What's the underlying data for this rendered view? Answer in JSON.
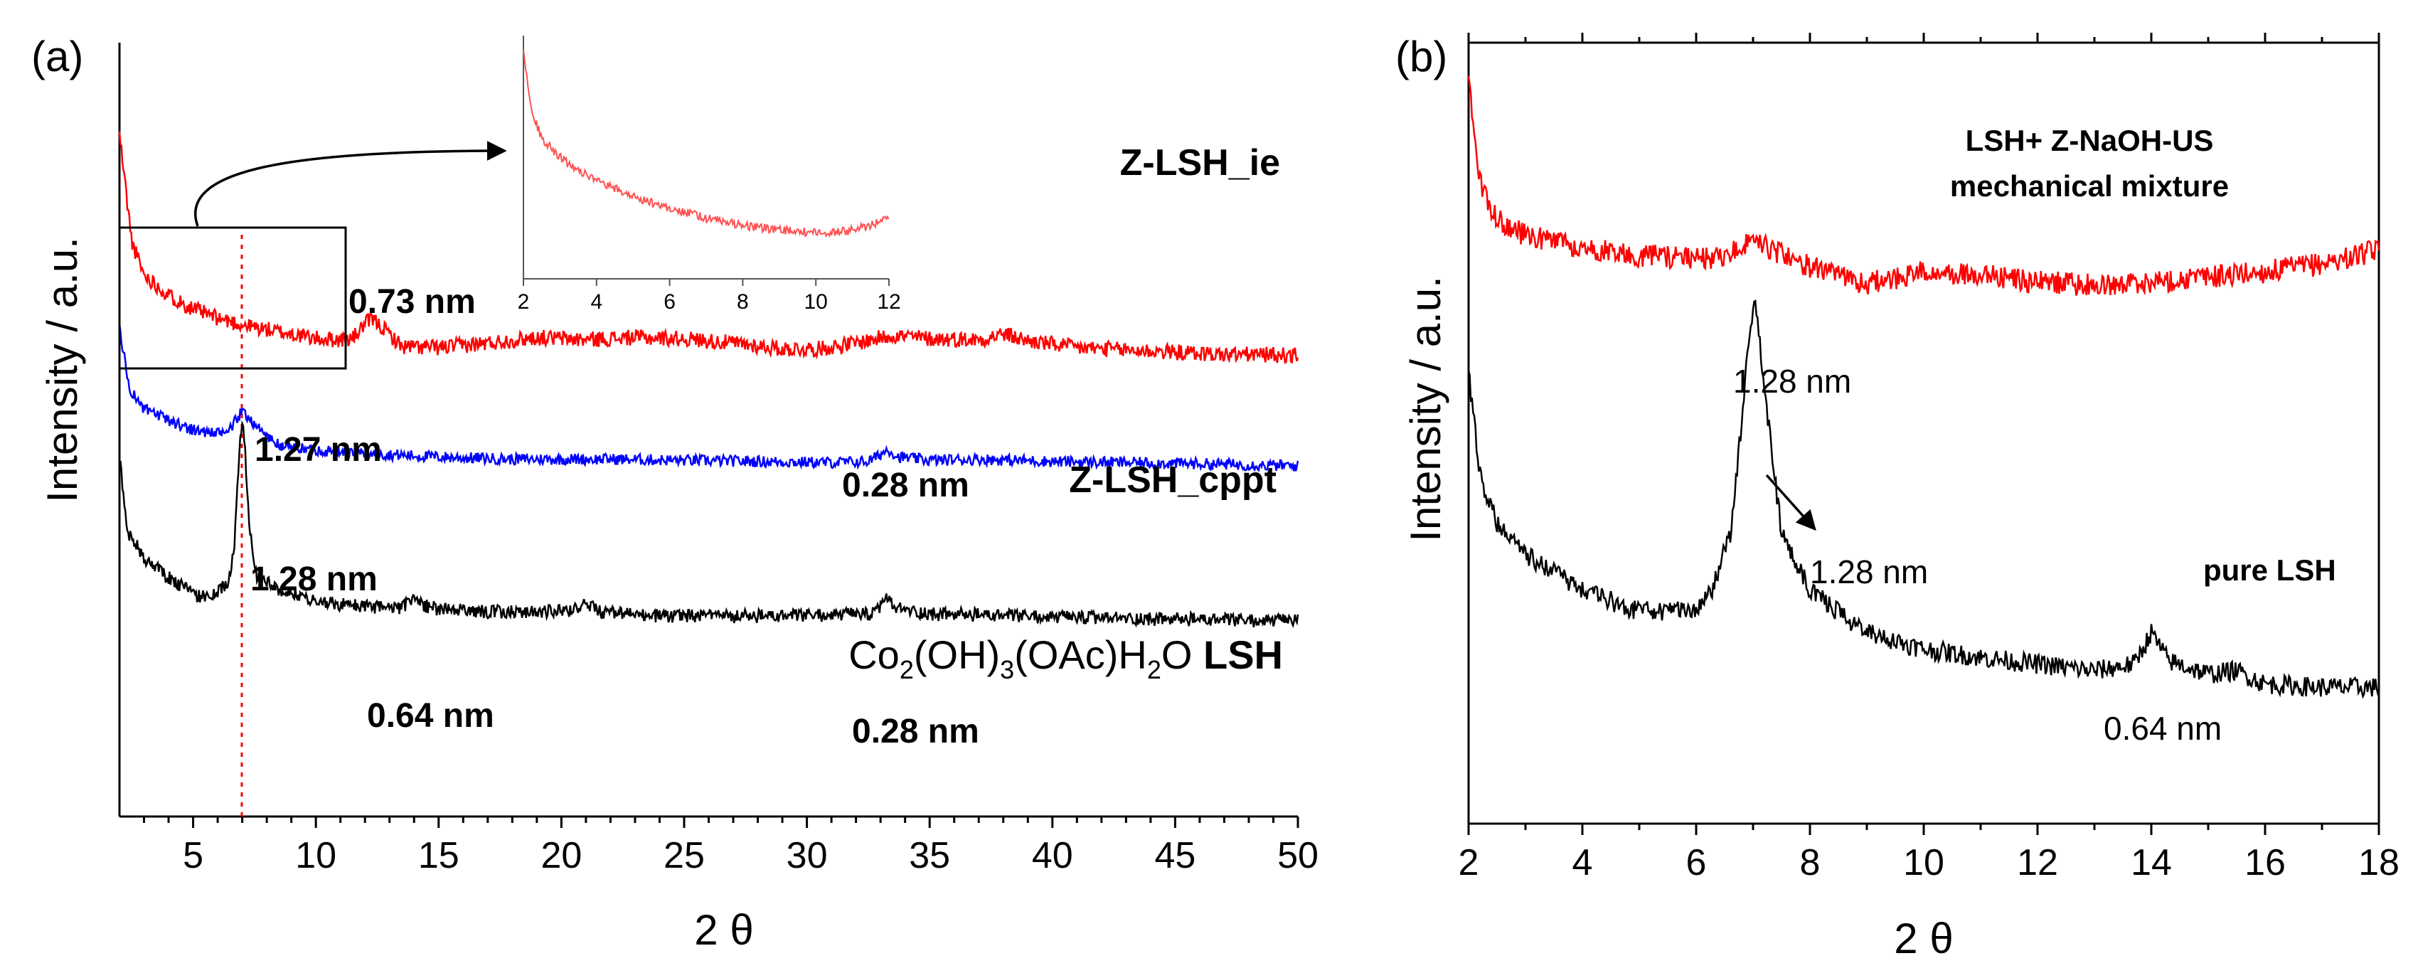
{
  "chart_data": [
    {
      "panel": "(a)",
      "type": "line",
      "xlabel": "2 θ",
      "ylabel": "Intensity / a.u.",
      "xlim": [
        2,
        50
      ],
      "xticks": [
        5,
        10,
        15,
        20,
        25,
        30,
        35,
        40,
        45,
        50
      ],
      "xtick_labels": [
        "5",
        "10",
        "15",
        "20",
        "25",
        "30",
        "35",
        "40",
        "45",
        "50"
      ],
      "grid": false,
      "series": [
        {
          "name": "Z-LSH_ie",
          "color": "#ff0000",
          "points": [
            [
              2,
              600
            ],
            [
              2.5,
              505
            ],
            [
              3,
              476
            ],
            [
              4,
              458
            ],
            [
              5,
              446
            ],
            [
              6,
              438
            ],
            [
              7,
              432
            ],
            [
              8,
              428
            ],
            [
              9,
              424
            ],
            [
              10,
              420
            ],
            [
              11,
              419
            ],
            [
              11.5,
              420
            ],
            [
              12,
              433
            ],
            [
              12.3,
              437
            ],
            [
              12.8,
              428
            ],
            [
              13.5,
              413
            ],
            [
              15,
              412
            ],
            [
              17,
              416
            ],
            [
              19,
              421
            ],
            [
              21,
              419
            ],
            [
              23,
              421
            ],
            [
              25,
              420
            ],
            [
              27,
              416
            ],
            [
              29,
              411
            ],
            [
              30.5,
              411
            ],
            [
              32,
              416
            ],
            [
              33.5,
              423
            ],
            [
              35,
              420
            ],
            [
              37,
              419
            ],
            [
              38,
              424
            ],
            [
              39,
              418
            ],
            [
              41,
              412
            ],
            [
              43,
              410
            ],
            [
              45,
              408
            ],
            [
              47,
              406
            ],
            [
              48.5,
              406
            ],
            [
              50,
              405
            ]
          ]
        },
        {
          "name": "Z-LSH_cppt",
          "color": "#0000ff",
          "points": [
            [
              2,
              430
            ],
            [
              2.4,
              376
            ],
            [
              3,
              358
            ],
            [
              4,
              348
            ],
            [
              5,
              340
            ],
            [
              6,
              336
            ],
            [
              6.5,
              340
            ],
            [
              6.8,
              350
            ],
            [
              7.0,
              356
            ],
            [
              7.3,
              350
            ],
            [
              7.8,
              338
            ],
            [
              8.5,
              326
            ],
            [
              10,
              322
            ],
            [
              12,
              319
            ],
            [
              15,
              316
            ],
            [
              18,
              314
            ],
            [
              20,
              314
            ],
            [
              22,
              314
            ],
            [
              25,
              313
            ],
            [
              28,
              312
            ],
            [
              31,
              311
            ],
            [
              32.5,
              312
            ],
            [
              33,
              318
            ],
            [
              33.3,
              323
            ],
            [
              33.7,
              316
            ],
            [
              35,
              313
            ],
            [
              37,
              314
            ],
            [
              40,
              312
            ],
            [
              43,
              311
            ],
            [
              46,
              310
            ],
            [
              48,
              309
            ],
            [
              50,
              308
            ]
          ]
        },
        {
          "name": "Co2(OH)3(OAc)H2O LSH",
          "color": "#000000",
          "points": [
            [
              2,
              316
            ],
            [
              2.3,
              252
            ],
            [
              3,
              227
            ],
            [
              4,
              210
            ],
            [
              5,
              196
            ],
            [
              5.5,
              192
            ],
            [
              6,
              196
            ],
            [
              6.5,
              210
            ],
            [
              6.7,
              245
            ],
            [
              6.9,
              325
            ],
            [
              7.0,
              350
            ],
            [
              7.1,
              328
            ],
            [
              7.3,
              250
            ],
            [
              7.6,
              212
            ],
            [
              8.5,
              200
            ],
            [
              10,
              189
            ],
            [
              12,
              184
            ],
            [
              13.5,
              183
            ],
            [
              14,
              194
            ],
            [
              14.3,
              186
            ],
            [
              15,
              182
            ],
            [
              17,
              180
            ],
            [
              19,
              180
            ],
            [
              20.5,
              181
            ],
            [
              21,
              188
            ],
            [
              21.5,
              180
            ],
            [
              23,
              177
            ],
            [
              25,
              176
            ],
            [
              27,
              176
            ],
            [
              29,
              176
            ],
            [
              31,
              177
            ],
            [
              32.8,
              178
            ],
            [
              33.2,
              193
            ],
            [
              33.6,
              183
            ],
            [
              35,
              178
            ],
            [
              37,
              177
            ],
            [
              40,
              175
            ],
            [
              43,
              174
            ],
            [
              46,
              173
            ],
            [
              48,
              172
            ],
            [
              50,
              172
            ]
          ]
        }
      ],
      "inset": {
        "series_name": "Z-LSH_ie",
        "color": "#ff0000",
        "xlim": [
          2,
          12
        ],
        "xticks": [
          2,
          4,
          6,
          8,
          10,
          12
        ],
        "xtick_labels": [
          "2",
          "4",
          "6",
          "8",
          "10",
          "12"
        ],
        "points": [
          [
            2,
            0.95
          ],
          [
            2.2,
            0.7
          ],
          [
            2.5,
            0.58
          ],
          [
            3,
            0.5
          ],
          [
            4,
            0.4
          ],
          [
            5,
            0.34
          ],
          [
            6,
            0.29
          ],
          [
            7,
            0.25
          ],
          [
            8,
            0.22
          ],
          [
            9,
            0.2
          ],
          [
            10,
            0.19
          ],
          [
            10.5,
            0.19
          ],
          [
            11,
            0.2
          ],
          [
            11.5,
            0.22
          ],
          [
            12,
            0.26
          ]
        ]
      },
      "annotations": {
        "peak_073": "0.73 nm",
        "peak_127": "1.27 nm",
        "peak_128": "1.28 nm",
        "peak_064": "0.64 nm",
        "peak_028_cppt": "0.28 nm",
        "peak_028_lsh": "0.28 nm",
        "label_ie": "Z-LSH_ie",
        "label_cppt": "Z-LSH_cppt",
        "formula_parts": [
          "Co",
          "2",
          "(OH)",
          "3",
          "(OAc)H",
          "2",
          "O "
        ],
        "formula_bold": "LSH"
      }
    },
    {
      "panel": "(b)",
      "type": "line",
      "xlabel": "2 θ",
      "ylabel": "Intensity / a.u.",
      "xlim": [
        2,
        18
      ],
      "xticks": [
        2,
        4,
        6,
        8,
        10,
        12,
        14,
        16,
        18
      ],
      "xtick_labels": [
        "2",
        "4",
        "6",
        "8",
        "10",
        "12",
        "14",
        "16",
        "18"
      ],
      "grid": false,
      "series": [
        {
          "name": "LSH+ Z-NaOH-US mechanical mixture",
          "color": "#ff0000",
          "points": [
            [
              2,
              450
            ],
            [
              2.2,
              385
            ],
            [
              2.5,
              363
            ],
            [
              3,
              354
            ],
            [
              4,
              346
            ],
            [
              5,
              342
            ],
            [
              6,
              340
            ],
            [
              6.5,
              340
            ],
            [
              7,
              352
            ],
            [
              7.3,
              345
            ],
            [
              8,
              335
            ],
            [
              9,
              325
            ],
            [
              10,
              332
            ],
            [
              11,
              330
            ],
            [
              12,
              326
            ],
            [
              13,
              324
            ],
            [
              14,
              326
            ],
            [
              15,
              329
            ],
            [
              16,
              332
            ],
            [
              17,
              337
            ],
            [
              18,
              345
            ]
          ]
        },
        {
          "name": "pure LSH",
          "color": "#000000",
          "points": [
            [
              2,
              270
            ],
            [
              2.2,
              210
            ],
            [
              2.5,
              180
            ],
            [
              3,
              162
            ],
            [
              4,
              140
            ],
            [
              5,
              128
            ],
            [
              5.5,
              128
            ],
            [
              6,
              130
            ],
            [
              6.3,
              142
            ],
            [
              6.6,
              175
            ],
            [
              6.8,
              240
            ],
            [
              6.95,
              300
            ],
            [
              7.05,
              312
            ],
            [
              7.2,
              260
            ],
            [
              7.5,
              175
            ],
            [
              8,
              140
            ],
            [
              9,
              115
            ],
            [
              10,
              105
            ],
            [
              11,
              100
            ],
            [
              12,
              96
            ],
            [
              13,
              92
            ],
            [
              13.7,
              96
            ],
            [
              14,
              115
            ],
            [
              14.3,
              98
            ],
            [
              15,
              90
            ],
            [
              15.5,
              92
            ],
            [
              16,
              84
            ],
            [
              17,
              82
            ],
            [
              18,
              82
            ]
          ]
        }
      ],
      "annotations": {
        "peak_128_top": "1.28 nm",
        "peak_128_arrow": "1.28 nm",
        "peak_064": "0.64 nm",
        "label_mix_line1": "LSH+ Z-NaOH-US",
        "label_mix_line2": "mechanical mixture",
        "label_pure": "pure LSH"
      }
    }
  ],
  "colors": {
    "axis": "#000000",
    "ie": "#ff0000",
    "cppt": "#0000ff",
    "lsh": "#000000",
    "guide": "#ff0000"
  }
}
